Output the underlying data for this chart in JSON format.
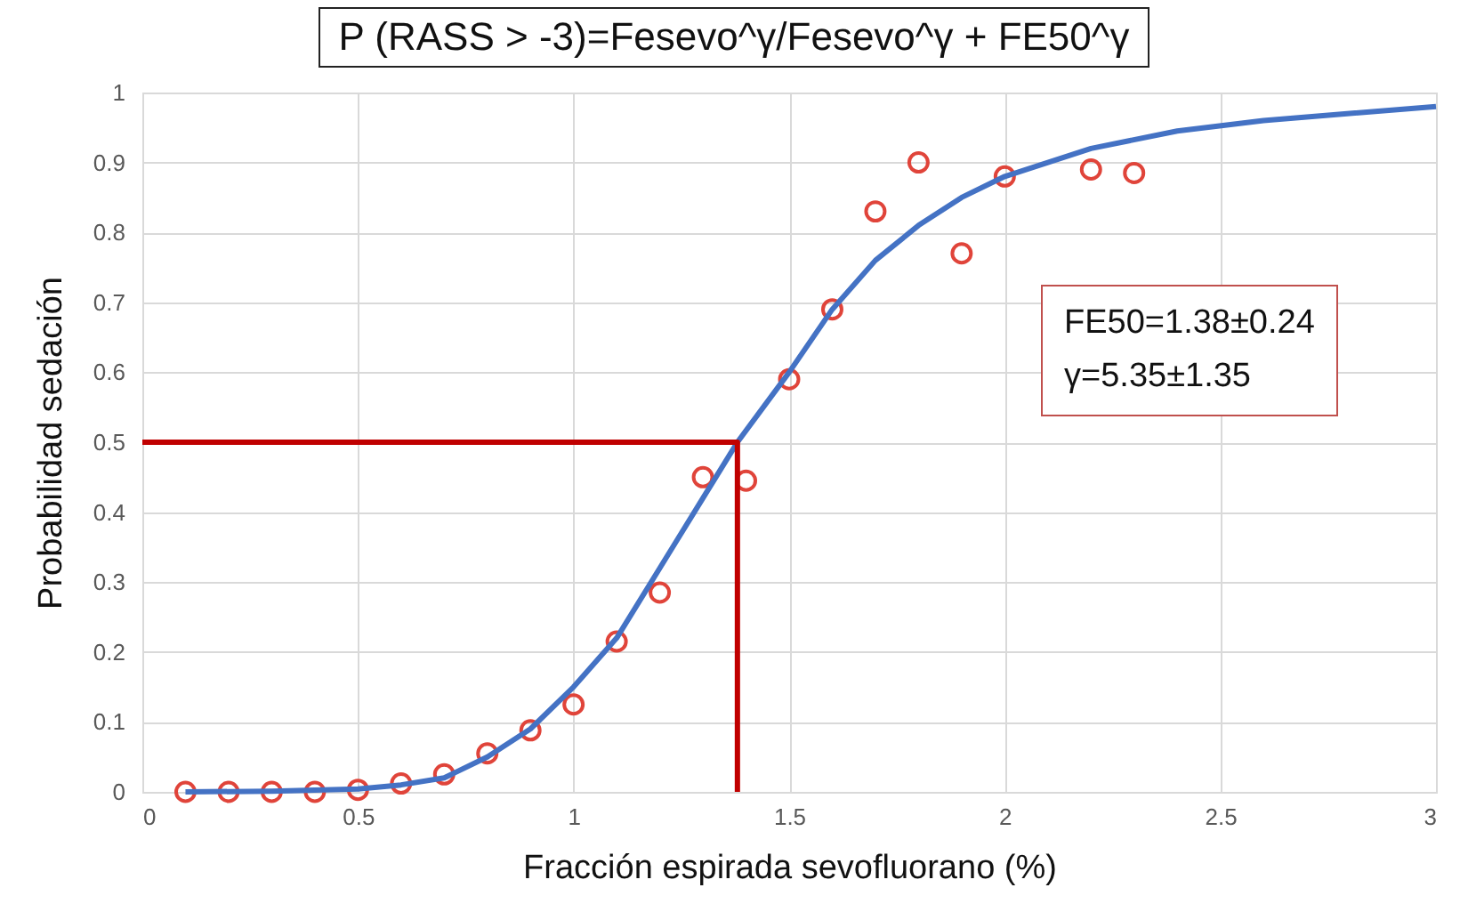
{
  "chart_data": {
    "type": "scatter",
    "title": "P (RASS > -3)=Fesevo^γ/Fesevo^γ + FE50^γ",
    "xlabel": "Fracción espirada sevofluorano (%)",
    "ylabel": "Probabilidad  sedación",
    "annotations": [
      "FE50=1.38±0.24",
      "γ=5.35±1.35"
    ],
    "xlim": [
      0,
      3
    ],
    "xticks": [
      0,
      0.5,
      1,
      1.5,
      2,
      2.5,
      3
    ],
    "ylim": [
      0,
      1
    ],
    "yticks": [
      0,
      0.1,
      0.2,
      0.3,
      0.4,
      0.5,
      0.6,
      0.7,
      0.8,
      0.9,
      1
    ],
    "grid": true,
    "series": [
      {
        "marker": "circle",
        "color": "#e0443a",
        "x": [
          0.1,
          0.2,
          0.3,
          0.4,
          0.5,
          0.6,
          0.7,
          0.8,
          0.9,
          1.0,
          1.1,
          1.2,
          1.3,
          1.4,
          1.5,
          1.6,
          1.7,
          1.8,
          1.9,
          2.0,
          2.2,
          2.3
        ],
        "values": [
          0,
          0,
          0,
          0,
          0.003,
          0.012,
          0.025,
          0.055,
          0.088,
          0.125,
          0.215,
          0.285,
          0.45,
          0.445,
          0.59,
          0.69,
          0.83,
          0.9,
          0.77,
          0.88,
          0.89,
          0.885
        ]
      },
      {
        "type": "line",
        "marker": "none",
        "color": "#4472c4",
        "x": [
          0.1,
          0.3,
          0.5,
          0.6,
          0.7,
          0.8,
          0.9,
          1.0,
          1.1,
          1.2,
          1.3,
          1.38,
          1.5,
          1.6,
          1.7,
          1.8,
          1.9,
          2.0,
          2.2,
          2.4,
          2.6,
          2.8,
          3.0
        ],
        "values": [
          0,
          0.001,
          0.004,
          0.01,
          0.02,
          0.05,
          0.09,
          0.15,
          0.22,
          0.32,
          0.42,
          0.5,
          0.6,
          0.69,
          0.76,
          0.81,
          0.85,
          0.88,
          0.92,
          0.945,
          0.96,
          0.97,
          0.98
        ]
      },
      {
        "type": "line",
        "marker": "none",
        "color": "#c00000",
        "x": [
          0,
          1.38,
          1.38
        ],
        "values": [
          0.5,
          0.5,
          0
        ]
      }
    ]
  }
}
